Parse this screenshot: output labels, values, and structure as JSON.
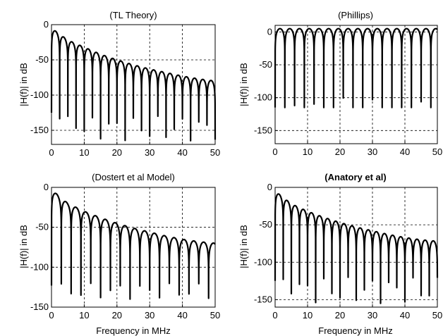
{
  "figure": {
    "background": "#ffffff",
    "line_color": "#000000",
    "grid_color": "#000000"
  },
  "chart_data": [
    {
      "type": "line",
      "title": "(TL Theory)",
      "title_bold": false,
      "xlabel": "",
      "ylabel": "|H(f)| in dB",
      "xlim": [
        0,
        50
      ],
      "ylim": [
        -170,
        0
      ],
      "xticks": [
        0,
        10,
        20,
        30,
        40,
        50
      ],
      "yticks": [
        0,
        -50,
        -100,
        -150
      ],
      "grid": true,
      "envelope": {
        "start_db": -5,
        "end_db": -80,
        "shape": "decay"
      },
      "notch_spacing_mhz": 2.5,
      "notch_depth_db": [
        -130,
        -165
      ],
      "series": [
        {
          "x": [
            0,
            5,
            10,
            15,
            20,
            25,
            30,
            35,
            40,
            45,
            50
          ],
          "y": [
            -5,
            -22,
            -32,
            -42,
            -50,
            -57,
            -63,
            -68,
            -73,
            -77,
            -80
          ]
        }
      ]
    },
    {
      "type": "line",
      "title": "(Phillips)",
      "title_bold": false,
      "xlabel": "",
      "ylabel": "|H(f)| in dB",
      "xlim": [
        0,
        50
      ],
      "ylim": [
        -170,
        10
      ],
      "xticks": [
        0,
        10,
        20,
        30,
        40,
        50
      ],
      "yticks": [
        0,
        -50,
        -100,
        -150
      ],
      "grid": true,
      "envelope": {
        "start_db": 5,
        "end_db": 5,
        "shape": "flat"
      },
      "notch_spacing_mhz": 3.0,
      "notch_depth_db": [
        -100,
        -165
      ],
      "series": [
        {
          "x": [
            0,
            5,
            10,
            15,
            20,
            25,
            30,
            35,
            40,
            45,
            50
          ],
          "y": [
            5,
            5,
            5,
            5,
            5,
            5,
            5,
            5,
            5,
            5,
            5
          ]
        }
      ]
    },
    {
      "type": "line",
      "title": "(Dostert et al Model)",
      "title_bold": false,
      "xlabel": "Frequency in MHz",
      "ylabel": "|H(f)| in dB",
      "xlim": [
        0,
        50
      ],
      "ylim": [
        -150,
        0
      ],
      "xticks": [
        0,
        10,
        20,
        30,
        40,
        50
      ],
      "yticks": [
        0,
        -50,
        -100,
        -150
      ],
      "grid": true,
      "envelope": {
        "start_db": -3,
        "end_db": -70,
        "shape": "decay"
      },
      "notch_spacing_mhz": 3.0,
      "notch_depth_db": [
        -120,
        -140
      ],
      "series": [
        {
          "x": [
            0,
            5,
            10,
            15,
            20,
            25,
            30,
            35,
            40,
            45,
            50
          ],
          "y": [
            -3,
            -20,
            -30,
            -38,
            -45,
            -51,
            -56,
            -61,
            -65,
            -68,
            -70
          ]
        }
      ]
    },
    {
      "type": "line",
      "title": "(Anatory et al)",
      "title_bold": true,
      "xlabel": "Frequency in MHz",
      "ylabel": "|H(f)| in dB",
      "xlim": [
        0,
        50
      ],
      "ylim": [
        -160,
        0
      ],
      "xticks": [
        0,
        10,
        20,
        30,
        40,
        50
      ],
      "yticks": [
        0,
        -50,
        -100,
        -150
      ],
      "grid": true,
      "envelope": {
        "start_db": -5,
        "end_db": -72,
        "shape": "decay"
      },
      "notch_spacing_mhz": 2.5,
      "notch_depth_db": [
        -120,
        -155
      ],
      "series": [
        {
          "x": [
            0,
            5,
            10,
            15,
            20,
            25,
            30,
            35,
            40,
            45,
            50
          ],
          "y": [
            -5,
            -22,
            -32,
            -40,
            -47,
            -53,
            -58,
            -63,
            -67,
            -70,
            -72
          ]
        }
      ]
    }
  ]
}
